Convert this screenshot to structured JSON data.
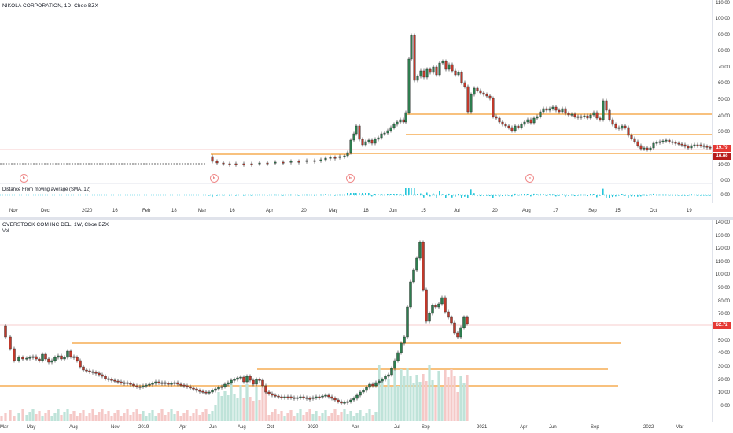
{
  "top": {
    "title": "NIKOLA CORPORATION, 1D, Cboe BZX",
    "indicator": "Distance From moving average (SMA, 12)",
    "indicator_zero": "0.00",
    "y_ticks": [
      "110.00",
      "100.00",
      "90.00",
      "80.00",
      "70.00",
      "60.00",
      "50.00",
      "40.00",
      "30.00",
      "20.00",
      "10.00",
      "0.00"
    ],
    "last_price": "19.79",
    "second_price": "18.88",
    "x_ticks": [
      "Nov",
      "Dec",
      "2020",
      "16",
      "Feb",
      "18",
      "Mar",
      "16",
      "Apr",
      "20",
      "May",
      "18",
      "Jun",
      "15",
      "Jul",
      "20",
      "Aug",
      "17",
      "Sep",
      "15",
      "Oct",
      "19"
    ],
    "earnings_badge": "E",
    "colors": {
      "up": "#26a69a",
      "down": "#ef5350",
      "level": "#f39c32",
      "candle_up": "#2e7d4f",
      "candle_down": "#c0392b"
    }
  },
  "bottom": {
    "title": "OVERSTOCK COM INC DEL, 1W, Cboe BZX",
    "volume_label": "Vol",
    "y_ticks": [
      "140.00",
      "130.00",
      "120.00",
      "110.00",
      "100.00",
      "90.00",
      "80.00",
      "70.00",
      "60.00",
      "50.00",
      "40.00",
      "30.00",
      "20.00",
      "10.00",
      "0.00"
    ],
    "last_price": "62.72",
    "x_ticks": [
      "Mar",
      "May",
      "Aug",
      "Nov",
      "2019",
      "Apr",
      "Jun",
      "Aug",
      "Oct",
      "2020",
      "Apr",
      "Jul",
      "Sep",
      "2021",
      "Apr",
      "Jun",
      "Sep",
      "2022",
      "Mar"
    ]
  }
}
